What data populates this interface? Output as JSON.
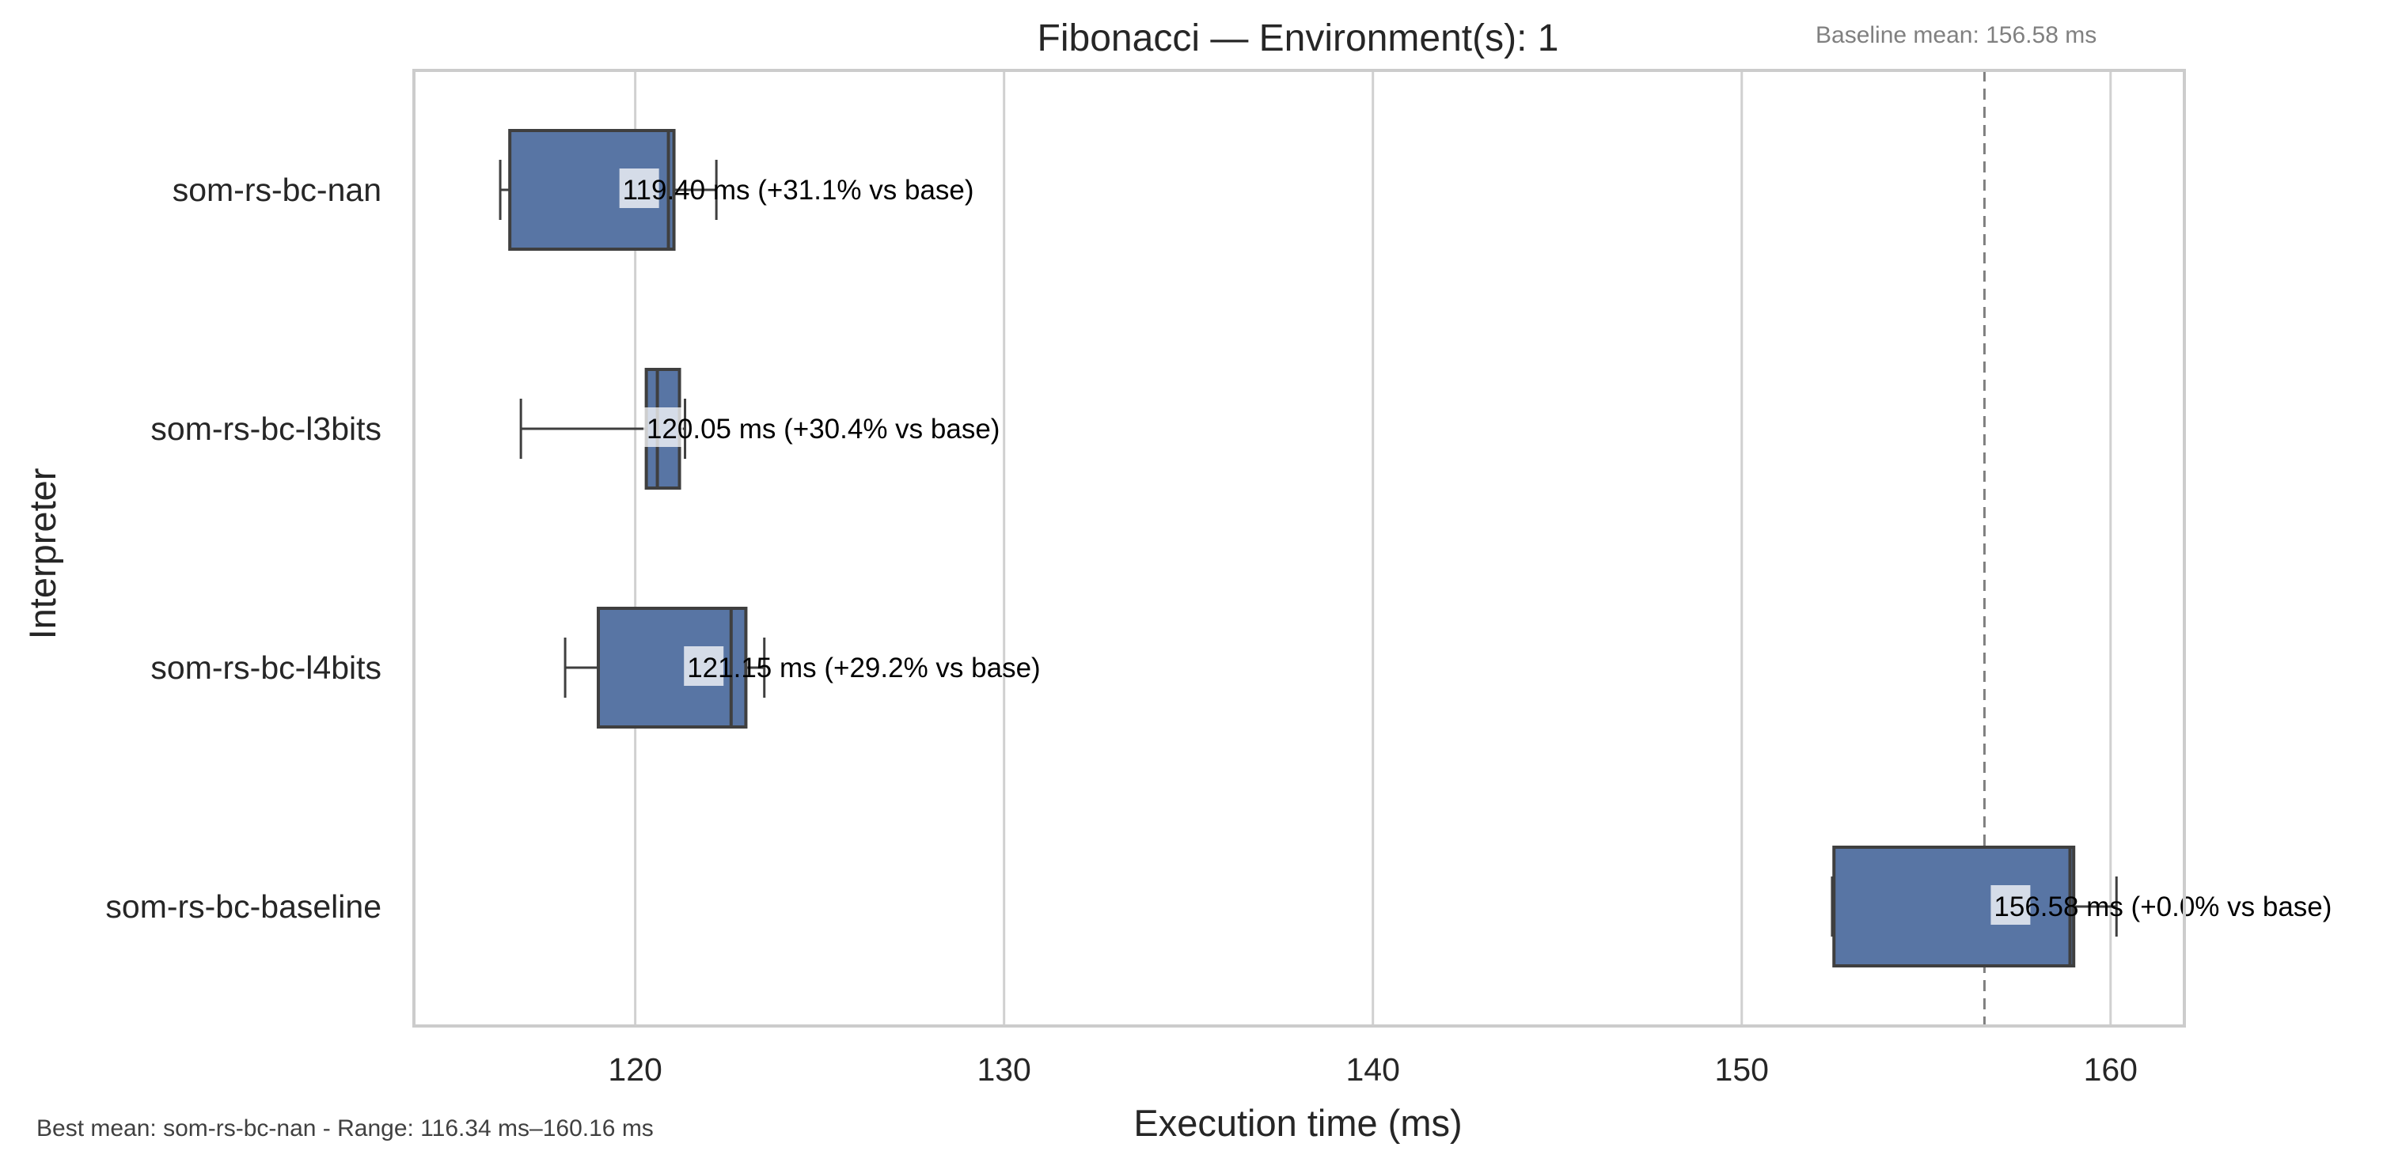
{
  "chart_data": {
    "type": "boxplot",
    "title": "Fibonacci — Environment(s): 1",
    "xlabel": "Execution time (ms)",
    "ylabel": "Interpreter",
    "xlim": [
      114,
      162
    ],
    "xticks": [
      120,
      130,
      140,
      150,
      160
    ],
    "grid": true,
    "color": "#5875a4",
    "edge_color": "#3f3f3f",
    "baseline": {
      "mean": 156.58,
      "label": "Baseline mean: 156.58 ms"
    },
    "footnote": "Best mean: som-rs-bc-nan - Range: 116.34 ms–160.16 ms",
    "series": [
      {
        "name": "som-rs-bc-nan",
        "whisker_low": 116.34,
        "q1": 116.6,
        "median": 120.9,
        "q3": 121.05,
        "whisker_high": 122.2,
        "mean": 119.4,
        "label": "119.40 ms  (+31.1% vs base)"
      },
      {
        "name": "som-rs-bc-l3bits",
        "whisker_low": 116.9,
        "q1": 120.3,
        "median": 120.6,
        "q3": 121.2,
        "whisker_high": 121.35,
        "mean": 120.05,
        "label": "120.05 ms  (+30.4% vs base)"
      },
      {
        "name": "som-rs-bc-l4bits",
        "whisker_low": 118.1,
        "q1": 119.0,
        "median": 122.6,
        "q3": 123.0,
        "whisker_high": 123.5,
        "mean": 121.15,
        "label": "121.15 ms  (+29.2% vs base)"
      },
      {
        "name": "som-rs-bc-baseline",
        "whisker_low": 152.45,
        "q1": 152.5,
        "median": 158.9,
        "q3": 159.0,
        "whisker_high": 160.16,
        "mean": 156.58,
        "label": "156.58 ms  (+0.0% vs base)"
      }
    ]
  }
}
